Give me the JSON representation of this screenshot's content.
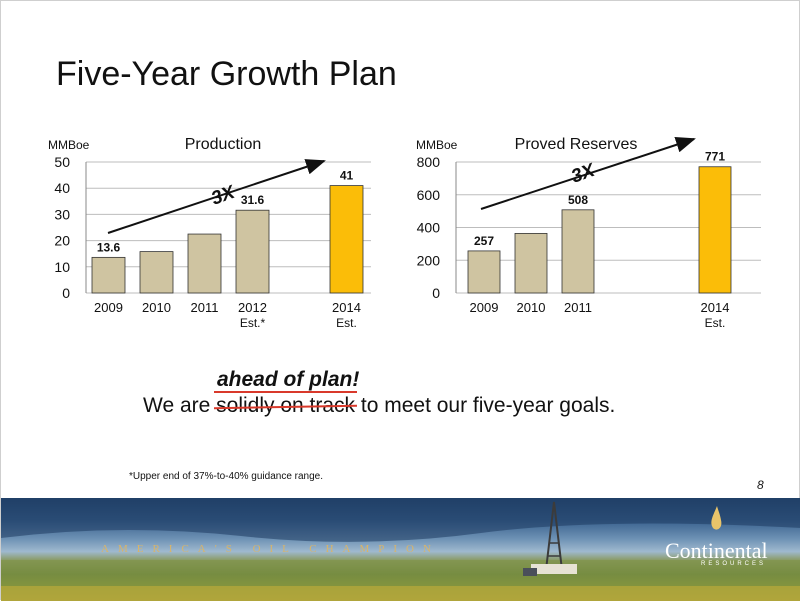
{
  "slide": {
    "title": "Five-Year Growth Plan",
    "statement": {
      "insert": "ahead of plan!",
      "prefix": "We are ",
      "struck": "solidly on track",
      "suffix": " to meet our five-year goals."
    },
    "footnote": "*Upper end of 37%-to-40% guidance range.",
    "page_number": "8",
    "banner": {
      "tagline": "AMERICA'S OIL CHAMPION",
      "brand": "Continental",
      "brand_sub": "RESOURCES"
    }
  },
  "colors": {
    "bar": "#cfc4a1",
    "highlight": "#fbbd08",
    "strike": "#d9392b"
  },
  "chart_data": [
    {
      "type": "bar",
      "title": "Production",
      "ylabel": "MMBoe",
      "ylim": [
        0,
        50
      ],
      "yticks": [
        0,
        10,
        20,
        30,
        40,
        50
      ],
      "grid": true,
      "categories": [
        "2009",
        "2010",
        "2011",
        "2012",
        "2014"
      ],
      "category_sublabels": [
        "",
        "",
        "",
        "Est.*",
        "Est."
      ],
      "values": [
        13.6,
        15.8,
        22.5,
        31.6,
        41
      ],
      "data_labels": [
        "13.6",
        "",
        "",
        "31.6",
        "41"
      ],
      "highlight": [
        false,
        false,
        false,
        false,
        true
      ],
      "annotation": "3X"
    },
    {
      "type": "bar",
      "title": "Proved Reserves",
      "ylabel": "MMBoe",
      "ylim": [
        0,
        800
      ],
      "yticks": [
        0,
        200,
        400,
        600,
        800
      ],
      "grid": true,
      "categories": [
        "2009",
        "2010",
        "2011",
        "2014"
      ],
      "category_sublabels": [
        "",
        "",
        "",
        "Est."
      ],
      "values": [
        257,
        364,
        508,
        771
      ],
      "data_labels": [
        "257",
        "",
        "508",
        "771"
      ],
      "highlight": [
        false,
        false,
        false,
        true
      ],
      "annotation": "3X"
    }
  ]
}
